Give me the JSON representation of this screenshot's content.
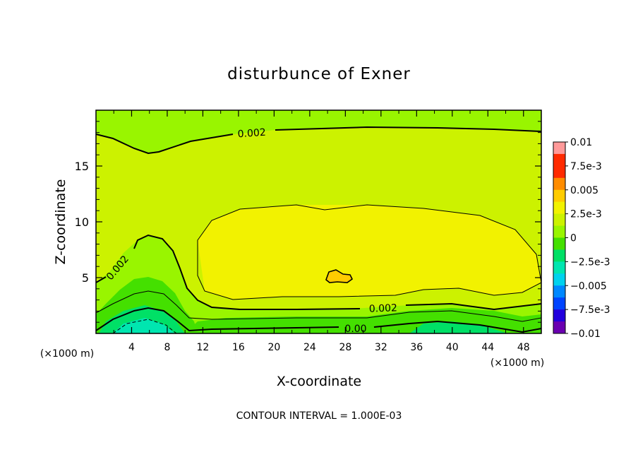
{
  "chart_data": {
    "type": "contour",
    "title": "disturbunce of Exner",
    "xlabel": "X-coordinate",
    "ylabel": "Z-coordinate",
    "x_unit": "(×1000 m)",
    "xlim": [
      0,
      50
    ],
    "ylim": [
      0,
      20
    ],
    "x_ticks": [
      "4",
      "8",
      "12",
      "16",
      "20",
      "24",
      "28",
      "32",
      "36",
      "40",
      "44",
      "48"
    ],
    "y_ticks": [
      "5",
      "10",
      "15"
    ],
    "contour_interval_text": "CONTOUR INTERVAL = 1.000E-03",
    "contour_labels": [
      "0.002",
      "0.002",
      "0.002",
      "0.00"
    ],
    "colorbar": {
      "labels": [
        "0.01",
        "7.5e-3",
        "0.005",
        "2.5e-3",
        "0",
        "−2.5e-3",
        "−0.005",
        "−7.5e-3",
        "−0.01"
      ],
      "range": [
        -0.01,
        0.01
      ]
    },
    "colors": {
      "c_pos_top": "#ff9999",
      "c_pos_high": "#ff2a00",
      "c_pos_mid": "#ff8c00",
      "c_pos_2": "#ffcc00",
      "c_pos_1": "#f2f200",
      "c_pos_07": "#ccf200",
      "c_pos_03": "#99f500",
      "c_zero": "#44e000",
      "c_neg_1": "#00e066",
      "c_neg_2": "#00e6b0",
      "c_neg_3": "#00d2ee",
      "c_neg_4": "#0088ff",
      "c_neg_5": "#0044ff",
      "c_neg_6": "#2200dd",
      "c_neg_7": "#1a00aa",
      "c_neg_8": "#6a00b0"
    }
  }
}
